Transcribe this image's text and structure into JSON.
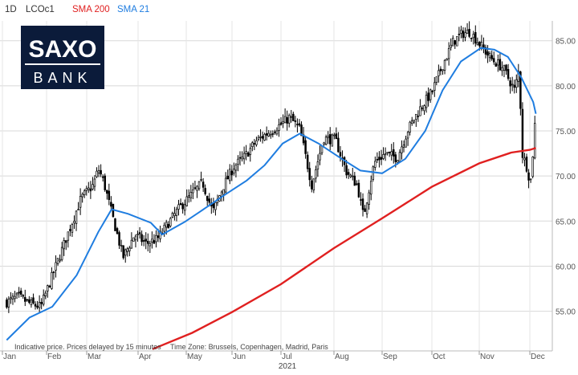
{
  "header": {
    "interval": "1D",
    "symbol": "LCOc1",
    "legend": [
      {
        "label": "SMA 200",
        "color": "#e02020"
      },
      {
        "label": "SMA 21",
        "color": "#1f7de0"
      }
    ]
  },
  "logo": {
    "top": "SAXO",
    "bottom": "BANK",
    "background": "#0b1b3a",
    "text_color": "#ffffff"
  },
  "footer": {
    "disclaimer": "Indicative price. Prices delayed by 15 minutes",
    "timezone": "Time Zone: Brussels, Copenhagen, Madrid, Paris",
    "year": "2021"
  },
  "chart_data": {
    "type": "candlestick",
    "x_axis": {
      "ticks": [
        "Jan",
        "Feb",
        "Mar",
        "Apr",
        "May",
        "Jun",
        "Jul",
        "Aug",
        "Sep",
        "Oct",
        "Nov",
        "Dec"
      ],
      "year": "2021"
    },
    "y_axis": {
      "position": "right",
      "ylim": [
        50.6,
        87.2
      ],
      "ticks": [
        "55.00",
        "60.00",
        "65.00",
        "70.00",
        "75.00",
        "80.00",
        "85.00"
      ]
    },
    "grid": true,
    "price_color": "#000000",
    "price_series": {
      "date_range": [
        "2021-01-04",
        "2021-12-10"
      ],
      "approx_close_by_date": [
        [
          "2021-01-04",
          56.0
        ],
        [
          "2021-01-12",
          56.6
        ],
        [
          "2021-01-21",
          55.8
        ],
        [
          "2021-01-28",
          55.5
        ],
        [
          "2021-02-04",
          58.5
        ],
        [
          "2021-02-11",
          61.5
        ],
        [
          "2021-02-18",
          64.5
        ],
        [
          "2021-02-25",
          67.5
        ],
        [
          "2021-03-05",
          69.0
        ],
        [
          "2021-03-08",
          70.8
        ],
        [
          "2021-03-11",
          69.5
        ],
        [
          "2021-03-18",
          64.5
        ],
        [
          "2021-03-23",
          61.0
        ],
        [
          "2021-03-30",
          63.5
        ],
        [
          "2021-04-06",
          62.5
        ],
        [
          "2021-04-13",
          63.0
        ],
        [
          "2021-04-20",
          64.8
        ],
        [
          "2021-04-27",
          66.5
        ],
        [
          "2021-05-05",
          68.0
        ],
        [
          "2021-05-12",
          69.3
        ],
        [
          "2021-05-19",
          66.0
        ],
        [
          "2021-05-26",
          68.8
        ],
        [
          "2021-06-02",
          71.0
        ],
        [
          "2021-06-09",
          72.2
        ],
        [
          "2021-06-16",
          73.9
        ],
        [
          "2021-06-23",
          74.8
        ],
        [
          "2021-07-01",
          75.7
        ],
        [
          "2021-07-06",
          76.5
        ],
        [
          "2021-07-12",
          75.2
        ],
        [
          "2021-07-19",
          69.0
        ],
        [
          "2021-07-26",
          74.2
        ],
        [
          "2021-08-02",
          74.0
        ],
        [
          "2021-08-09",
          70.5
        ],
        [
          "2021-08-16",
          69.0
        ],
        [
          "2021-08-20",
          65.5
        ],
        [
          "2021-08-27",
          71.5
        ],
        [
          "2021-09-03",
          72.5
        ],
        [
          "2021-09-10",
          72.0
        ],
        [
          "2021-09-17",
          75.3
        ],
        [
          "2021-09-24",
          77.5
        ],
        [
          "2021-10-01",
          79.3
        ],
        [
          "2021-10-08",
          82.3
        ],
        [
          "2021-10-15",
          84.9
        ],
        [
          "2021-10-21",
          85.8
        ],
        [
          "2021-10-26",
          86.0
        ],
        [
          "2021-11-01",
          84.7
        ],
        [
          "2021-11-08",
          83.0
        ],
        [
          "2021-11-15",
          82.0
        ],
        [
          "2021-11-22",
          79.5
        ],
        [
          "2021-11-25",
          82.2
        ],
        [
          "2021-11-26",
          72.7
        ],
        [
          "2021-11-30",
          70.6
        ],
        [
          "2021-12-01",
          68.9
        ],
        [
          "2021-12-03",
          69.9
        ],
        [
          "2021-12-06",
          73.1
        ],
        [
          "2021-12-08",
          75.8
        ],
        [
          "2021-12-10",
          75.2
        ]
      ]
    },
    "sma21": [
      [
        "2021-01-04",
        51.8
      ],
      [
        "2021-01-20",
        54.3
      ],
      [
        "2021-02-05",
        55.5
      ],
      [
        "2021-02-22",
        59.0
      ],
      [
        "2021-03-08",
        63.8
      ],
      [
        "2021-03-16",
        66.3
      ],
      [
        "2021-03-26",
        65.8
      ],
      [
        "2021-04-09",
        64.8
      ],
      [
        "2021-04-16",
        63.5
      ],
      [
        "2021-04-30",
        64.9
      ],
      [
        "2021-05-10",
        66.0
      ],
      [
        "2021-05-26",
        67.8
      ],
      [
        "2021-06-10",
        69.5
      ],
      [
        "2021-06-21",
        71.2
      ],
      [
        "2021-07-02",
        73.6
      ],
      [
        "2021-07-12",
        74.7
      ],
      [
        "2021-07-23",
        73.6
      ],
      [
        "2021-08-06",
        71.9
      ],
      [
        "2021-08-18",
        70.6
      ],
      [
        "2021-09-01",
        70.3
      ],
      [
        "2021-09-15",
        71.9
      ],
      [
        "2021-09-27",
        75.0
      ],
      [
        "2021-10-08",
        79.5
      ],
      [
        "2021-10-20",
        82.7
      ],
      [
        "2021-11-02",
        84.2
      ],
      [
        "2021-11-10",
        84.0
      ],
      [
        "2021-11-18",
        83.2
      ],
      [
        "2021-11-26",
        80.9
      ],
      [
        "2021-12-06",
        78.2
      ],
      [
        "2021-12-10",
        76.9
      ]
    ],
    "sma200": [
      [
        "2021-04-10",
        50.8
      ],
      [
        "2021-05-05",
        52.6
      ],
      [
        "2021-06-01",
        54.9
      ],
      [
        "2021-07-01",
        58.0
      ],
      [
        "2021-08-01",
        62.0
      ],
      [
        "2021-09-01",
        65.3
      ],
      [
        "2021-10-01",
        68.8
      ],
      [
        "2021-11-01",
        71.4
      ],
      [
        "2021-11-20",
        72.6
      ],
      [
        "2021-12-01",
        72.9
      ],
      [
        "2021-12-10",
        73.1
      ]
    ]
  }
}
